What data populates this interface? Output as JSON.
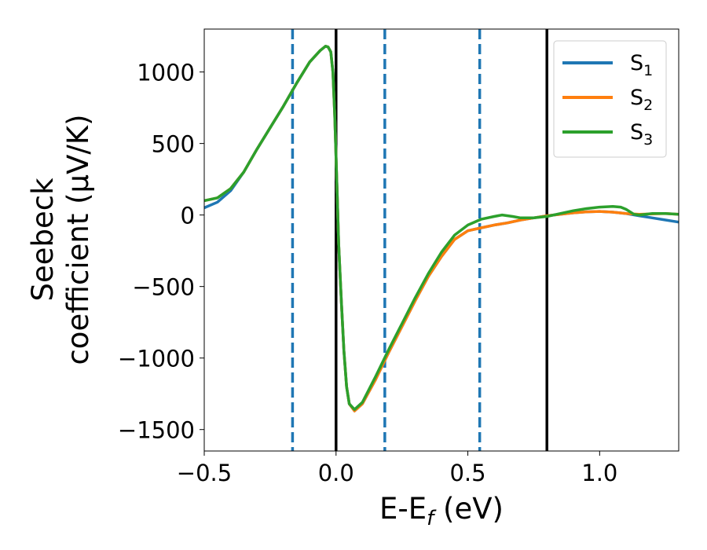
{
  "chart_data": {
    "type": "line",
    "xlabel": {
      "main": "E-E",
      "sub": "f",
      "tail": " (eV)"
    },
    "ylabel": {
      "line1": "Seebeck",
      "line2": "coefficient  (μV/K)"
    },
    "xlim": [
      -0.5,
      1.3
    ],
    "ylim": [
      -1650,
      1300
    ],
    "xticks": [
      -0.5,
      0.0,
      0.5,
      1.0
    ],
    "xtick_labels": [
      "−0.5",
      "0.0",
      "0.5",
      "1.0"
    ],
    "yticks": [
      1000,
      500,
      0,
      -500,
      -1000,
      -1500
    ],
    "ytick_labels": [
      "1000",
      "500",
      "0",
      "−500",
      "−1000",
      "−1500"
    ],
    "legend": {
      "placement": "top-right"
    },
    "vlines": [
      {
        "x": -0.165,
        "style": "dashed",
        "color": "#1f77b4"
      },
      {
        "x": 0.0,
        "style": "solid",
        "color": "#000000"
      },
      {
        "x": 0.185,
        "style": "dashed",
        "color": "#1f77b4"
      },
      {
        "x": 0.545,
        "style": "dashed",
        "color": "#1f77b4"
      },
      {
        "x": 0.8,
        "style": "solid",
        "color": "#000000"
      }
    ],
    "series": [
      {
        "name": "S",
        "sub": "1",
        "color": "#1f77b4",
        "points": [
          [
            -0.5,
            50
          ],
          [
            -0.45,
            90
          ],
          [
            -0.4,
            170
          ],
          [
            -0.35,
            300
          ],
          [
            -0.3,
            460
          ],
          [
            -0.25,
            610
          ],
          [
            -0.2,
            760
          ],
          [
            -0.15,
            920
          ],
          [
            -0.1,
            1070
          ],
          [
            -0.06,
            1150
          ],
          [
            -0.04,
            1180
          ],
          [
            -0.03,
            1175
          ],
          [
            -0.02,
            1140
          ],
          [
            -0.012,
            1000
          ],
          [
            -0.005,
            700
          ],
          [
            0.0,
            400
          ],
          [
            0.005,
            100
          ],
          [
            0.01,
            -200
          ],
          [
            0.02,
            -600
          ],
          [
            0.03,
            -950
          ],
          [
            0.04,
            -1200
          ],
          [
            0.05,
            -1320
          ],
          [
            0.07,
            -1370
          ],
          [
            0.1,
            -1320
          ],
          [
            0.15,
            -1150
          ],
          [
            0.2,
            -960
          ],
          [
            0.25,
            -780
          ],
          [
            0.3,
            -600
          ],
          [
            0.35,
            -430
          ],
          [
            0.4,
            -290
          ],
          [
            0.45,
            -170
          ],
          [
            0.5,
            -110
          ],
          [
            0.55,
            -90
          ],
          [
            0.6,
            -70
          ],
          [
            0.65,
            -55
          ],
          [
            0.7,
            -35
          ],
          [
            0.75,
            -20
          ],
          [
            0.8,
            -5
          ],
          [
            0.85,
            5
          ],
          [
            0.9,
            15
          ],
          [
            0.95,
            22
          ],
          [
            1.0,
            25
          ],
          [
            1.05,
            20
          ],
          [
            1.1,
            10
          ],
          [
            1.15,
            -5
          ],
          [
            1.2,
            -20
          ],
          [
            1.25,
            -35
          ],
          [
            1.3,
            -50
          ]
        ]
      },
      {
        "name": "S",
        "sub": "2",
        "color": "#ff7f0e",
        "points": [
          [
            -0.5,
            100
          ],
          [
            -0.45,
            120
          ],
          [
            -0.4,
            185
          ],
          [
            -0.35,
            300
          ],
          [
            -0.3,
            460
          ],
          [
            -0.25,
            610
          ],
          [
            -0.2,
            760
          ],
          [
            -0.15,
            920
          ],
          [
            -0.1,
            1070
          ],
          [
            -0.06,
            1150
          ],
          [
            -0.04,
            1180
          ],
          [
            -0.03,
            1175
          ],
          [
            -0.02,
            1140
          ],
          [
            -0.012,
            1000
          ],
          [
            -0.005,
            700
          ],
          [
            0.0,
            400
          ],
          [
            0.005,
            100
          ],
          [
            0.01,
            -200
          ],
          [
            0.02,
            -600
          ],
          [
            0.03,
            -950
          ],
          [
            0.04,
            -1200
          ],
          [
            0.05,
            -1320
          ],
          [
            0.07,
            -1370
          ],
          [
            0.1,
            -1320
          ],
          [
            0.15,
            -1150
          ],
          [
            0.2,
            -960
          ],
          [
            0.25,
            -780
          ],
          [
            0.3,
            -600
          ],
          [
            0.35,
            -430
          ],
          [
            0.4,
            -290
          ],
          [
            0.45,
            -170
          ],
          [
            0.5,
            -110
          ],
          [
            0.55,
            -90
          ],
          [
            0.6,
            -70
          ],
          [
            0.65,
            -55
          ],
          [
            0.7,
            -35
          ],
          [
            0.75,
            -20
          ],
          [
            0.8,
            -5
          ],
          [
            0.85,
            5
          ],
          [
            0.9,
            15
          ],
          [
            0.95,
            22
          ],
          [
            1.0,
            25
          ],
          [
            1.05,
            20
          ],
          [
            1.1,
            10
          ],
          [
            1.15,
            5
          ],
          [
            1.2,
            8
          ],
          [
            1.25,
            10
          ],
          [
            1.3,
            5
          ]
        ]
      },
      {
        "name": "S",
        "sub": "3",
        "color": "#2ca02c",
        "points": [
          [
            -0.5,
            100
          ],
          [
            -0.45,
            120
          ],
          [
            -0.4,
            185
          ],
          [
            -0.35,
            300
          ],
          [
            -0.3,
            460
          ],
          [
            -0.25,
            610
          ],
          [
            -0.2,
            760
          ],
          [
            -0.15,
            920
          ],
          [
            -0.1,
            1070
          ],
          [
            -0.06,
            1150
          ],
          [
            -0.04,
            1180
          ],
          [
            -0.03,
            1175
          ],
          [
            -0.02,
            1140
          ],
          [
            -0.012,
            1000
          ],
          [
            -0.005,
            700
          ],
          [
            0.0,
            400
          ],
          [
            0.005,
            100
          ],
          [
            0.01,
            -200
          ],
          [
            0.02,
            -600
          ],
          [
            0.03,
            -950
          ],
          [
            0.04,
            -1200
          ],
          [
            0.05,
            -1320
          ],
          [
            0.07,
            -1360
          ],
          [
            0.1,
            -1310
          ],
          [
            0.15,
            -1130
          ],
          [
            0.2,
            -940
          ],
          [
            0.25,
            -760
          ],
          [
            0.3,
            -580
          ],
          [
            0.35,
            -410
          ],
          [
            0.4,
            -260
          ],
          [
            0.45,
            -140
          ],
          [
            0.5,
            -70
          ],
          [
            0.55,
            -30
          ],
          [
            0.6,
            -10
          ],
          [
            0.63,
            0
          ],
          [
            0.67,
            -10
          ],
          [
            0.7,
            -20
          ],
          [
            0.75,
            -20
          ],
          [
            0.8,
            -10
          ],
          [
            0.85,
            10
          ],
          [
            0.9,
            30
          ],
          [
            0.95,
            45
          ],
          [
            1.0,
            55
          ],
          [
            1.05,
            60
          ],
          [
            1.08,
            55
          ],
          [
            1.1,
            40
          ],
          [
            1.13,
            5
          ],
          [
            1.15,
            0
          ],
          [
            1.2,
            10
          ],
          [
            1.25,
            10
          ],
          [
            1.3,
            5
          ]
        ]
      }
    ]
  }
}
